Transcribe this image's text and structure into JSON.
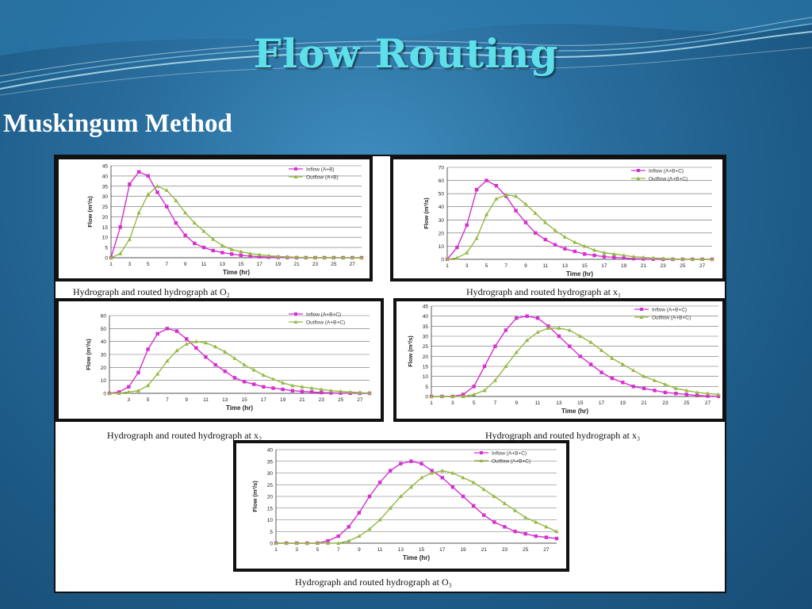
{
  "slide": {
    "title": "Flow Routing",
    "subtitle": "Muskingum Method"
  },
  "colors": {
    "inflow": "#d62fd0",
    "outflow": "#95b843",
    "title": "#5ee0ea"
  },
  "captions": {
    "c1": "Hydrograph and routed hydrograph at O₂",
    "c2": "Hydrograph and routed hydrograph at x₁",
    "c3": "Hydrograph and routed hydrograph at x₂",
    "c4": "Hydrograph and routed hydrograph at x₃",
    "c5": "Hydrograph and routed hydrograph at O₃"
  },
  "chart_data": [
    {
      "id": "c1",
      "type": "line",
      "xlabel": "Time (hr)",
      "ylabel": "Flow (m³/s)",
      "xlim": [
        1,
        28
      ],
      "ylim": [
        0,
        45
      ],
      "yticks": [
        0,
        5,
        10,
        15,
        20,
        25,
        30,
        35,
        40,
        45
      ],
      "xticks": [
        1,
        3,
        5,
        7,
        9,
        11,
        13,
        15,
        17,
        19,
        21,
        23,
        25,
        27
      ],
      "legend": "top-right",
      "series": [
        {
          "name": "Inflow (A+B)",
          "x": [
            1,
            2,
            3,
            4,
            5,
            6,
            7,
            8,
            9,
            10,
            11,
            12,
            13,
            14,
            15,
            16,
            17,
            18,
            19,
            20,
            21,
            22,
            23,
            24,
            25,
            26,
            27,
            28
          ],
          "y": [
            0,
            15,
            36,
            42,
            40,
            32,
            25,
            17,
            11,
            7,
            5,
            3.5,
            2.5,
            1.8,
            1.2,
            0.8,
            0.5,
            0.3,
            0.2,
            0.1,
            0,
            0,
            0,
            0,
            0,
            0,
            0,
            0
          ]
        },
        {
          "name": "Outflow (A+B)",
          "x": [
            1,
            2,
            3,
            4,
            5,
            6,
            7,
            8,
            9,
            10,
            11,
            12,
            13,
            14,
            15,
            16,
            17,
            18,
            19,
            20,
            21,
            22,
            23,
            24,
            25,
            26,
            27,
            28
          ],
          "y": [
            0,
            2,
            9,
            22,
            31,
            35,
            33,
            28,
            22,
            17,
            13,
            9,
            6,
            4,
            3,
            2,
            1.5,
            1,
            0.6,
            0.4,
            0.2,
            0.1,
            0,
            0,
            0,
            0,
            0,
            0
          ]
        }
      ]
    },
    {
      "id": "c2",
      "type": "line",
      "xlabel": "Time (hr)",
      "ylabel": "Flow (m³/s)",
      "xlim": [
        1,
        28
      ],
      "ylim": [
        0,
        70
      ],
      "yticks": [
        0,
        10,
        20,
        30,
        40,
        50,
        60,
        70
      ],
      "xticks": [
        1,
        3,
        5,
        7,
        9,
        11,
        13,
        15,
        17,
        19,
        21,
        23,
        25,
        27
      ],
      "legend": "top-right",
      "series": [
        {
          "name": "Inflow (A+B+C)",
          "x": [
            1,
            2,
            3,
            4,
            5,
            6,
            7,
            8,
            9,
            10,
            11,
            12,
            13,
            14,
            15,
            16,
            17,
            18,
            19,
            20,
            21,
            22,
            23,
            24,
            25,
            26,
            27,
            28
          ],
          "y": [
            0,
            9,
            26,
            53,
            60,
            56,
            48,
            37,
            28,
            20,
            15,
            11,
            8,
            6,
            4,
            3,
            2,
            1.5,
            1,
            0.5,
            0.3,
            0.1,
            0,
            0,
            0,
            0,
            0,
            0
          ]
        },
        {
          "name": "Outflow (A+B+C)",
          "x": [
            1,
            2,
            3,
            4,
            5,
            6,
            7,
            8,
            9,
            10,
            11,
            12,
            13,
            14,
            15,
            16,
            17,
            18,
            19,
            20,
            21,
            22,
            23,
            24,
            25,
            26,
            27,
            28
          ],
          "y": [
            0,
            1,
            5,
            16,
            34,
            46,
            49,
            48,
            42,
            35,
            28,
            22,
            17,
            13,
            10,
            7,
            5,
            4,
            3,
            2,
            1.5,
            1,
            0.6,
            0.3,
            0.1,
            0,
            0,
            0
          ]
        }
      ]
    },
    {
      "id": "c3",
      "type": "line",
      "xlabel": "Time (hr)",
      "ylabel": "Flow (m³/s)",
      "xlim": [
        1,
        28
      ],
      "ylim": [
        0,
        60
      ],
      "yticks": [
        0,
        10,
        20,
        30,
        40,
        50,
        60
      ],
      "xticks": [
        3,
        5,
        7,
        9,
        11,
        13,
        15,
        17,
        19,
        21,
        23,
        25,
        27
      ],
      "legend": "top-right",
      "series": [
        {
          "name": "Inflow (A+B+C)",
          "x": [
            1,
            2,
            3,
            4,
            5,
            6,
            7,
            8,
            9,
            10,
            11,
            12,
            13,
            14,
            15,
            16,
            17,
            18,
            19,
            20,
            21,
            22,
            23,
            24,
            25,
            26,
            27,
            28
          ],
          "y": [
            0,
            1,
            5,
            16,
            34,
            46,
            50,
            48,
            42,
            35,
            28,
            22,
            17,
            12,
            9,
            7,
            5,
            4,
            3,
            2,
            1.5,
            1,
            0.6,
            0.3,
            0.2,
            0.1,
            0,
            0
          ]
        },
        {
          "name": "Outflow (A+B+C)",
          "x": [
            1,
            2,
            3,
            4,
            5,
            6,
            7,
            8,
            9,
            10,
            11,
            12,
            13,
            14,
            15,
            16,
            17,
            18,
            19,
            20,
            21,
            22,
            23,
            24,
            25,
            26,
            27,
            28
          ],
          "y": [
            0,
            0,
            1,
            2,
            6,
            15,
            25,
            33,
            38,
            40,
            39,
            36,
            32,
            27,
            22,
            18,
            14,
            11,
            8,
            6,
            5,
            4,
            3,
            2,
            1.5,
            1,
            0.5,
            0.2
          ]
        }
      ]
    },
    {
      "id": "c4",
      "type": "line",
      "xlabel": "Time (hr)",
      "ylabel": "Flow (m³/s)",
      "xlim": [
        1,
        28
      ],
      "ylim": [
        0,
        45
      ],
      "yticks": [
        0,
        5,
        10,
        15,
        20,
        25,
        30,
        35,
        40,
        45
      ],
      "xticks": [
        1,
        3,
        5,
        7,
        9,
        11,
        13,
        15,
        17,
        19,
        21,
        23,
        25,
        27
      ],
      "legend": "top-right",
      "series": [
        {
          "name": "Inflow (A+B+C)",
          "x": [
            1,
            2,
            3,
            4,
            5,
            6,
            7,
            8,
            9,
            10,
            11,
            12,
            13,
            14,
            15,
            16,
            17,
            18,
            19,
            20,
            21,
            22,
            23,
            24,
            25,
            26,
            27,
            28
          ],
          "y": [
            0,
            0,
            0,
            1,
            5,
            15,
            25,
            33,
            39,
            40,
            39,
            35,
            30,
            25,
            20,
            16,
            12,
            9,
            7,
            5,
            4,
            3,
            2,
            1.5,
            1,
            0.5,
            0.2,
            0.1
          ]
        },
        {
          "name": "Outflow (A+B+C)",
          "x": [
            1,
            2,
            3,
            4,
            5,
            6,
            7,
            8,
            9,
            10,
            11,
            12,
            13,
            14,
            15,
            16,
            17,
            18,
            19,
            20,
            21,
            22,
            23,
            24,
            25,
            26,
            27,
            28
          ],
          "y": [
            0,
            0,
            0,
            0,
            1,
            3,
            8,
            15,
            22,
            28,
            32,
            34,
            34,
            33,
            30,
            27,
            23,
            19,
            16,
            13,
            10,
            8,
            6,
            4,
            3,
            2,
            1.5,
            1
          ]
        }
      ]
    },
    {
      "id": "c5",
      "type": "line",
      "xlabel": "Time (hr)",
      "ylabel": "Flow (m³/s)",
      "xlim": [
        1,
        28
      ],
      "ylim": [
        0,
        40
      ],
      "yticks": [
        0,
        5,
        10,
        15,
        20,
        25,
        30,
        35,
        40
      ],
      "xticks": [
        1,
        3,
        5,
        7,
        9,
        11,
        13,
        15,
        17,
        19,
        21,
        23,
        25,
        27
      ],
      "legend": "top-right",
      "series": [
        {
          "name": "Inflow (A+B+C)",
          "x": [
            1,
            2,
            3,
            4,
            5,
            6,
            7,
            8,
            9,
            10,
            11,
            12,
            13,
            14,
            15,
            16,
            17,
            18,
            19,
            20,
            21,
            22,
            23,
            24,
            25,
            26,
            27,
            28
          ],
          "y": [
            0,
            0,
            0,
            0,
            0,
            1,
            3,
            7,
            13,
            20,
            26,
            31,
            34,
            35,
            34,
            31,
            28,
            24,
            20,
            16,
            12,
            9,
            7,
            5,
            4,
            3,
            2.5,
            2
          ]
        },
        {
          "name": "Outflow (A+B+C)",
          "x": [
            1,
            2,
            3,
            4,
            5,
            6,
            7,
            8,
            9,
            10,
            11,
            12,
            13,
            14,
            15,
            16,
            17,
            18,
            19,
            20,
            21,
            22,
            23,
            24,
            25,
            26,
            27,
            28
          ],
          "y": [
            0,
            0,
            0,
            0,
            0,
            0,
            0,
            1,
            3,
            6,
            10,
            15,
            20,
            24,
            28,
            30,
            31,
            30,
            28,
            26,
            23,
            20,
            17,
            14,
            11,
            9,
            7,
            5
          ]
        }
      ]
    }
  ]
}
